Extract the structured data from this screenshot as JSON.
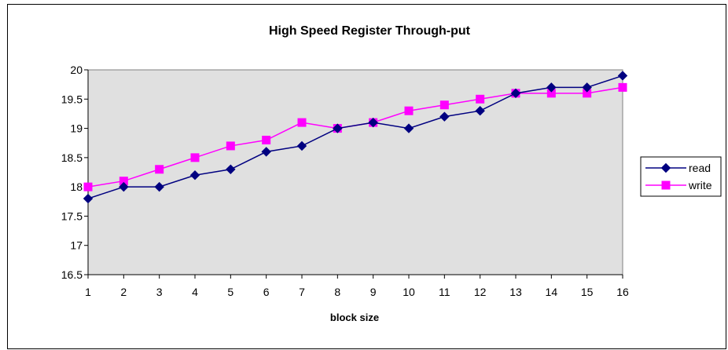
{
  "chart_data": {
    "type": "line",
    "title": "High Speed Register Through-put",
    "xlabel": "block size",
    "ylabel": "",
    "categories": [
      "1",
      "2",
      "3",
      "4",
      "5",
      "6",
      "7",
      "8",
      "9",
      "10",
      "11",
      "12",
      "13",
      "14",
      "15",
      "16"
    ],
    "ylim": [
      16.5,
      20
    ],
    "yticks": [
      "16.5",
      "17",
      "17.5",
      "18",
      "18.5",
      "19",
      "19.5",
      "20"
    ],
    "grid": false,
    "plot_background": "#e0e0e0",
    "legend_position": "right",
    "series": [
      {
        "name": "read",
        "color": "#000080",
        "marker": "diamond",
        "values": [
          17.8,
          18.0,
          18.0,
          18.2,
          18.3,
          18.6,
          18.7,
          19.0,
          19.1,
          19.0,
          19.2,
          19.3,
          19.6,
          19.7,
          19.7,
          19.9
        ]
      },
      {
        "name": "write",
        "color": "#ff00ff",
        "marker": "square",
        "values": [
          18.0,
          18.1,
          18.3,
          18.5,
          18.7,
          18.8,
          19.1,
          19.0,
          19.1,
          19.3,
          19.4,
          19.5,
          19.6,
          19.6,
          19.6,
          19.7
        ]
      }
    ]
  }
}
